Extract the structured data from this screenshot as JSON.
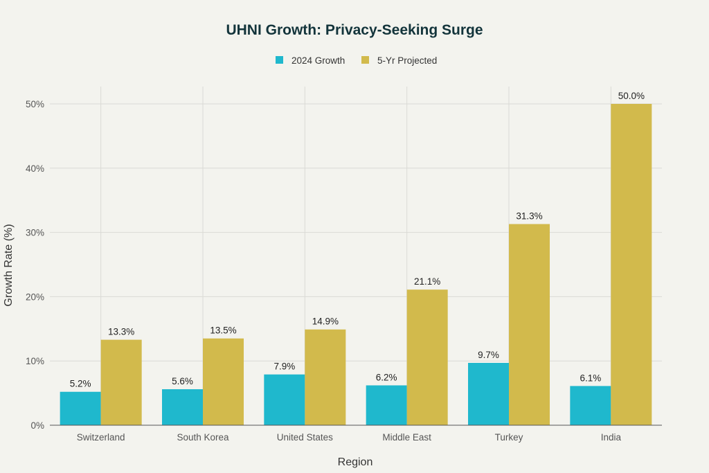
{
  "chart_data": {
    "type": "bar",
    "title": "UHNI Growth: Privacy-Seeking Surge",
    "xlabel": "Region",
    "ylabel": "Growth Rate (%)",
    "ylim": [
      0,
      52
    ],
    "yticks": [
      0,
      10,
      20,
      30,
      40,
      50
    ],
    "ytick_labels": [
      "0%",
      "10%",
      "20%",
      "30%",
      "40%",
      "50%"
    ],
    "categories": [
      "Switzerland",
      "South Korea",
      "United States",
      "Middle East",
      "Turkey",
      "India"
    ],
    "series": [
      {
        "name": "2024 Growth",
        "color": "#1FB8CD",
        "values": [
          5.2,
          5.6,
          7.9,
          6.2,
          9.7,
          6.1
        ],
        "labels": [
          "5.2%",
          "5.6%",
          "7.9%",
          "6.2%",
          "9.7%",
          "6.1%"
        ]
      },
      {
        "name": "5-Yr Projected",
        "color": "#D2BA4C",
        "values": [
          13.3,
          13.5,
          14.9,
          21.1,
          31.3,
          50.0
        ],
        "labels": [
          "13.3%",
          "13.5%",
          "14.9%",
          "21.1%",
          "31.3%",
          "50.0%"
        ]
      }
    ],
    "legend": "top-center",
    "grid": true
  }
}
